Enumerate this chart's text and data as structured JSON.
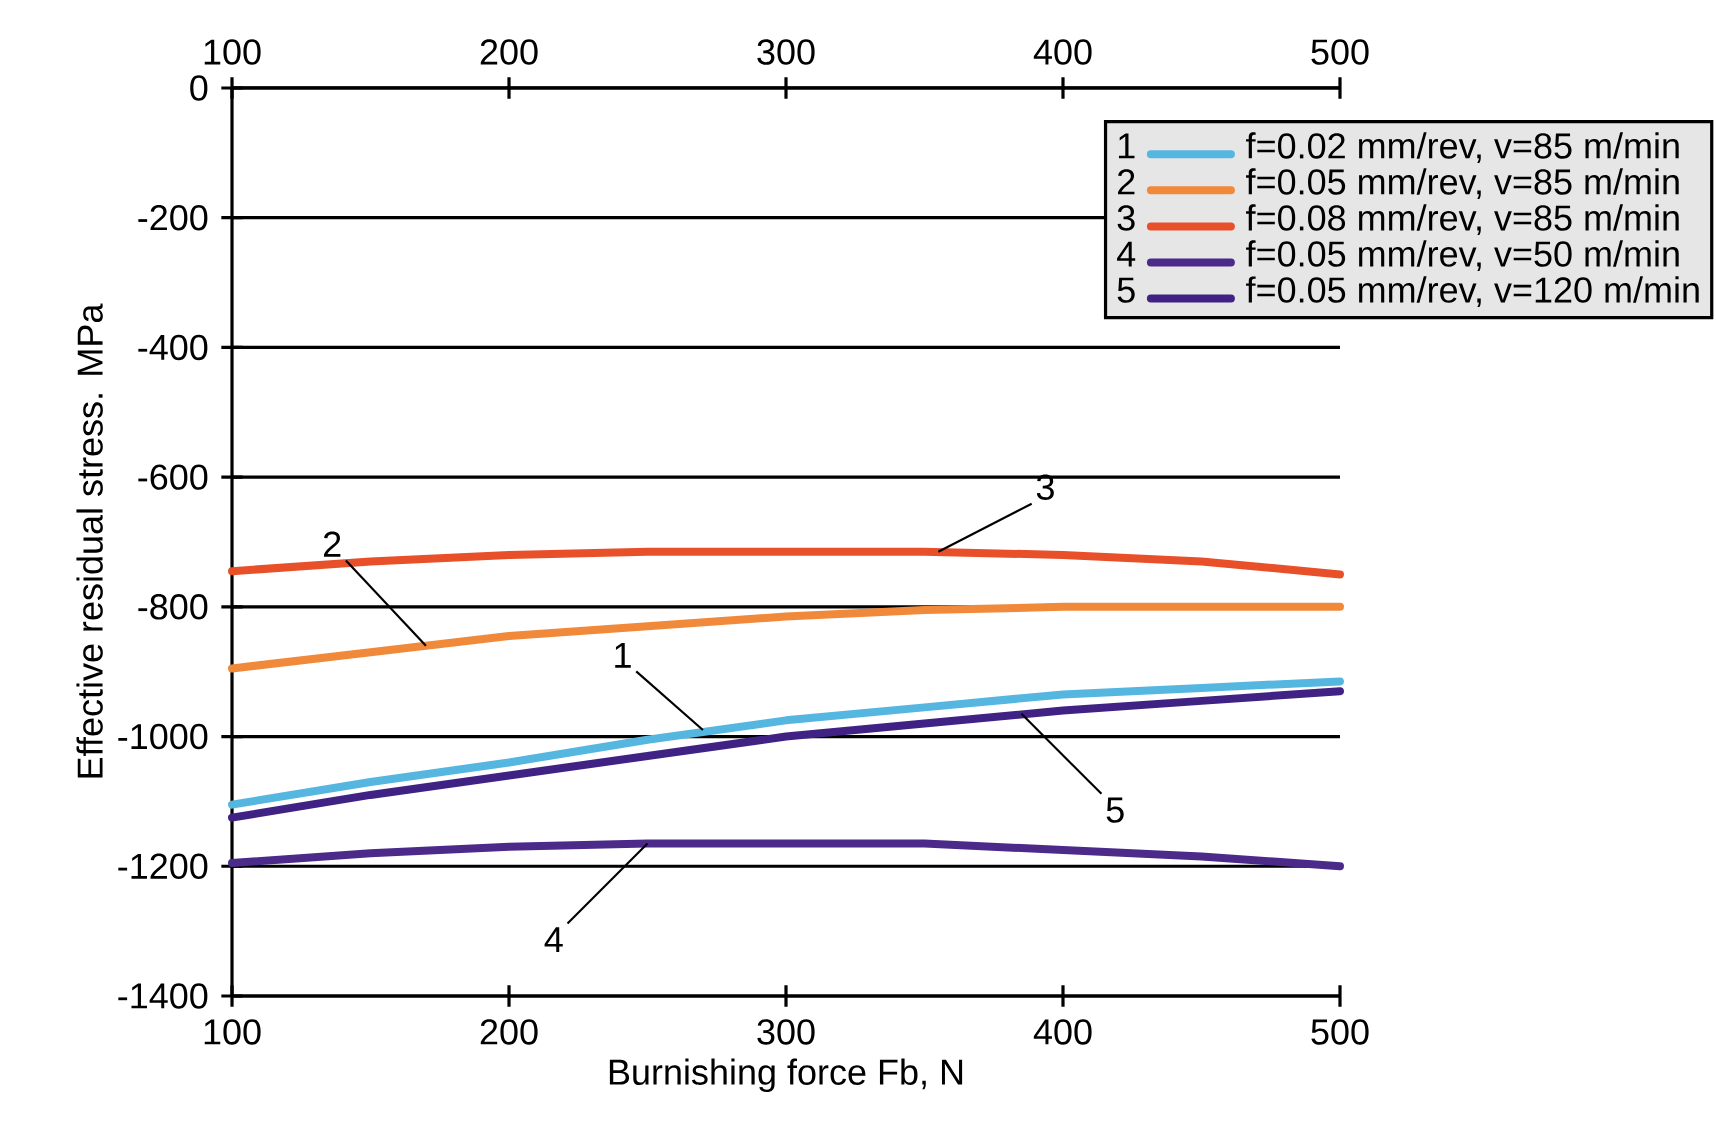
{
  "chart_data": {
    "type": "line",
    "xlabel": "Burnishing force Fb, N",
    "ylabel": "Effective residual stress. MPa",
    "xlim": [
      100,
      500
    ],
    "xticks": [
      100,
      200,
      300,
      400,
      500
    ],
    "x2lim": [
      100,
      500
    ],
    "x2ticks": [
      100,
      200,
      300,
      400,
      500
    ],
    "ylim": [
      -1400,
      0
    ],
    "yticks": [
      -1400,
      -1200,
      -1000,
      -800,
      -600,
      -400,
      -200,
      0
    ],
    "grid": "y",
    "legend": "top right",
    "line_style": "solid",
    "marker": "none",
    "x": [
      100,
      150,
      200,
      250,
      300,
      350,
      400,
      450,
      500
    ],
    "series": [
      {
        "name": "f=0.02 mm/rev, v=85 m/min",
        "color": "#55b7e0",
        "values": [
          -1105,
          -1070,
          -1040,
          -1005,
          -975,
          -955,
          -935,
          -925,
          -915
        ]
      },
      {
        "name": "f=0.05 mm/rev, v=85 m/min",
        "color": "#f08a3a",
        "values": [
          -895,
          -870,
          -845,
          -830,
          -815,
          -805,
          -800,
          -800,
          -800
        ]
      },
      {
        "name": "f=0.08 mm/rev, v=85 m/min",
        "color": "#e8502a",
        "values": [
          -745,
          -730,
          -720,
          -715,
          -715,
          -715,
          -720,
          -730,
          -750
        ]
      },
      {
        "name": "f=0.05 mm/rev, v=50 m/min",
        "color": "#4b2a8a",
        "values": [
          -1195,
          -1180,
          -1170,
          -1165,
          -1165,
          -1165,
          -1175,
          -1185,
          -1200
        ]
      },
      {
        "name": "f=0.05 mm/rev, v=120 m/min",
        "color": "#3f2283",
        "values": [
          -1125,
          -1090,
          -1060,
          -1030,
          -1000,
          -980,
          -960,
          -945,
          -930
        ]
      }
    ],
    "annotations": [
      {
        "text": "1",
        "x": 270,
        "y": -990
      },
      {
        "text": "2",
        "x": 170,
        "y": -860
      },
      {
        "text": "3",
        "x": 355,
        "y": -715
      },
      {
        "text": "4",
        "x": 250,
        "y": -1165
      },
      {
        "text": "5",
        "x": 385,
        "y": -965
      }
    ]
  }
}
